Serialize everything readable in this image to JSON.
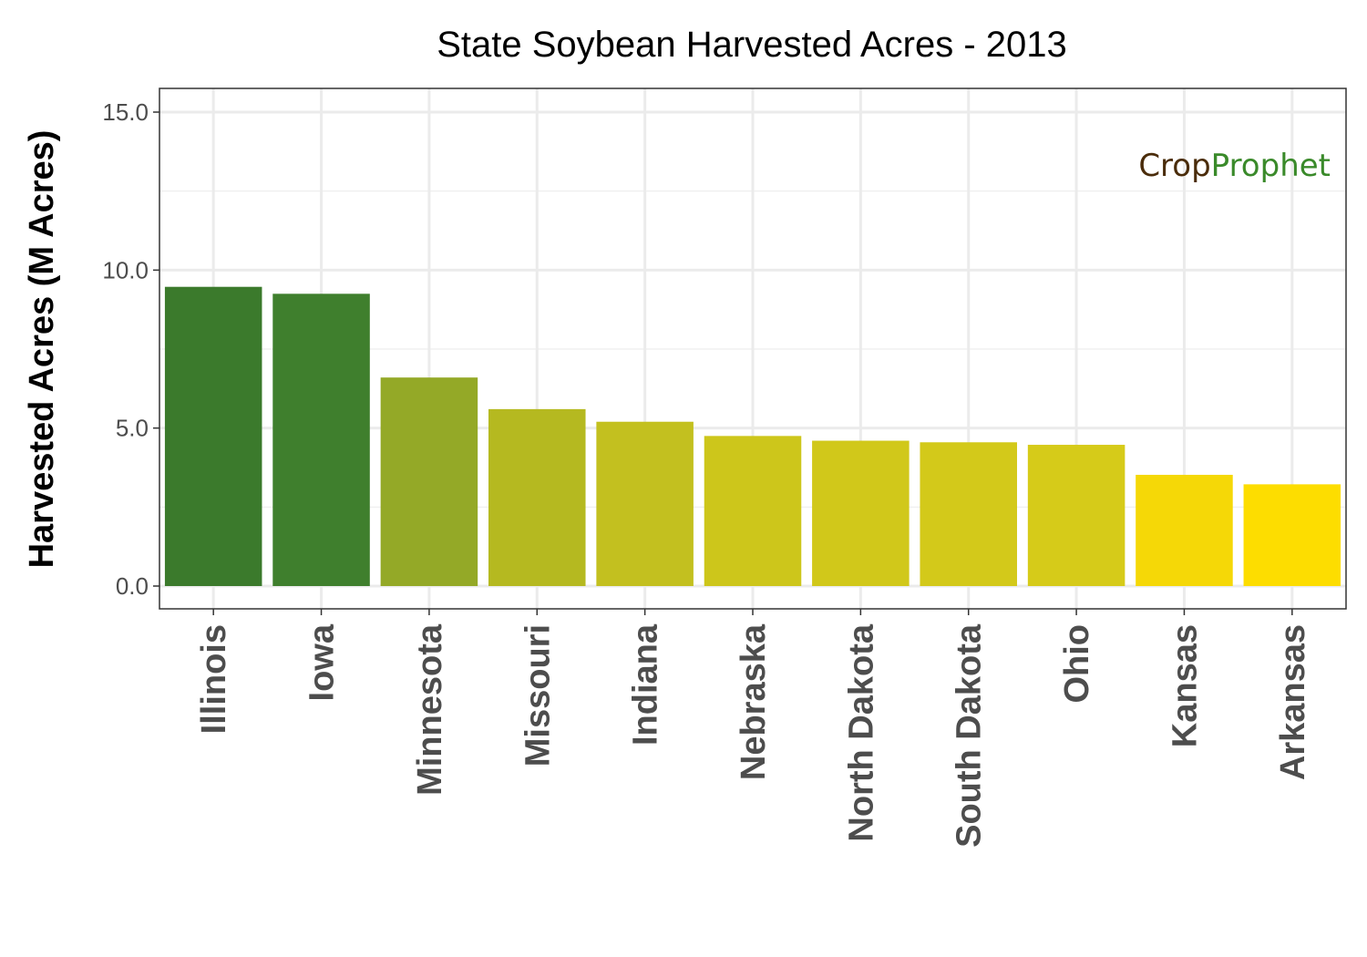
{
  "chart_data": {
    "type": "bar",
    "title": "State Soybean Harvested Acres - 2013",
    "xlabel": "",
    "ylabel": "Harvested Acres (M Acres)",
    "ylim": [
      0,
      15.6
    ],
    "yticks": [
      "0.0",
      "5.0",
      "10.0",
      "15.0"
    ],
    "grid": true,
    "categories": [
      "Illinois",
      "Iowa",
      "Minnesota",
      "Missouri",
      "Indiana",
      "Nebraska",
      "North Dakota",
      "South Dakota",
      "Ohio",
      "Kansas",
      "Arkansas"
    ],
    "values": [
      9.47,
      9.25,
      6.6,
      5.6,
      5.2,
      4.75,
      4.6,
      4.55,
      4.47,
      3.52,
      3.22
    ],
    "colors": [
      "#3b7a2c",
      "#3f7f2d",
      "#94a927",
      "#b5b920",
      "#c3c01f",
      "#cdc61b",
      "#d1c81a",
      "#d3c91a",
      "#d6cb19",
      "#f5d807",
      "#fddd00"
    ]
  },
  "logo": {
    "part1": "Crop",
    "part2": "Prophet"
  }
}
